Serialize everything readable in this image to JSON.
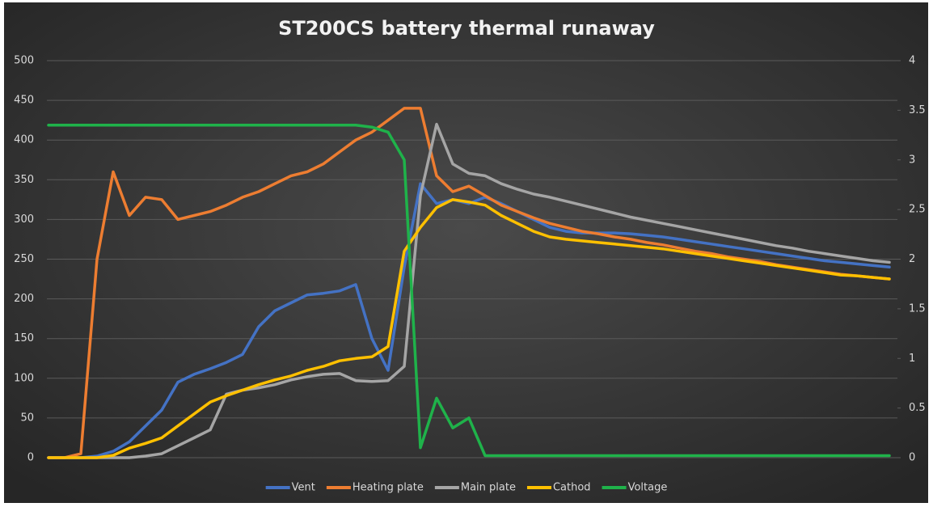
{
  "chart_data": {
    "type": "line",
    "title": "ST200CS battery thermal runaway",
    "categories": [
      null,
      null,
      null,
      null,
      null,
      null,
      null,
      null,
      null,
      null,
      null,
      null,
      null,
      null,
      null,
      null,
      null,
      null,
      null,
      null,
      null,
      null,
      null,
      null,
      null,
      null,
      null,
      null,
      null,
      null,
      null,
      null,
      null,
      null,
      null,
      null,
      null,
      null,
      null,
      null,
      null,
      null,
      null,
      null,
      null,
      null,
      null,
      null,
      null,
      null,
      null,
      null,
      null
    ],
    "series": [
      {
        "name": "Vent",
        "color": "#4472c4",
        "values": [
          0,
          0,
          0,
          2,
          8,
          20,
          40,
          60,
          95,
          105,
          112,
          120,
          130,
          165,
          185,
          195,
          205,
          207,
          210,
          218,
          150,
          110,
          240,
          345,
          320,
          325,
          320,
          328,
          320,
          310,
          300,
          290,
          285,
          283,
          283,
          283,
          282,
          280,
          278,
          275,
          272,
          269,
          266,
          263,
          260,
          257,
          254,
          251,
          248,
          246,
          244,
          242,
          240
        ]
      },
      {
        "name": "Heating plate",
        "color": "#ed7d31",
        "values": [
          0,
          0,
          5,
          250,
          360,
          305,
          328,
          325,
          300,
          305,
          310,
          318,
          328,
          335,
          345,
          355,
          360,
          370,
          385,
          400,
          410,
          425,
          440,
          440,
          355,
          335,
          342,
          330,
          318,
          310,
          302,
          295,
          290,
          285,
          282,
          278,
          275,
          271,
          268,
          264,
          260,
          257,
          253,
          250,
          247,
          243,
          240,
          237,
          234,
          231,
          229,
          227,
          225
        ]
      },
      {
        "name": "Main plate",
        "color": "#a5a5a5",
        "values": [
          0,
          0,
          0,
          0,
          0,
          0,
          2,
          5,
          15,
          25,
          35,
          80,
          85,
          88,
          92,
          98,
          102,
          105,
          106,
          97,
          96,
          97,
          115,
          330,
          420,
          370,
          358,
          355,
          345,
          338,
          332,
          328,
          323,
          318,
          313,
          308,
          303,
          299,
          295,
          291,
          287,
          283,
          279,
          275,
          271,
          267,
          264,
          260,
          257,
          254,
          251,
          248,
          246
        ]
      },
      {
        "name": "Cathod",
        "color": "#ffc000",
        "values": [
          0,
          0,
          0,
          0,
          3,
          12,
          18,
          25,
          40,
          55,
          70,
          78,
          85,
          92,
          98,
          103,
          110,
          115,
          122,
          125,
          127,
          140,
          260,
          290,
          315,
          325,
          322,
          318,
          305,
          295,
          285,
          278,
          275,
          273,
          271,
          269,
          267,
          265,
          263,
          260,
          257,
          254,
          251,
          248,
          245,
          242,
          239,
          236,
          233,
          230,
          229,
          227,
          225
        ]
      },
      {
        "name": "Voltage",
        "color": "#1fb24a",
        "axis": "y2",
        "values": [
          3.35,
          3.35,
          3.35,
          3.35,
          3.35,
          3.35,
          3.35,
          3.35,
          3.35,
          3.35,
          3.35,
          3.35,
          3.35,
          3.35,
          3.35,
          3.35,
          3.35,
          3.35,
          3.35,
          3.35,
          3.33,
          3.28,
          3.0,
          0.1,
          0.6,
          0.3,
          0.4,
          0.02,
          0.02,
          0.02,
          0.02,
          0.02,
          0.02,
          0.02,
          0.02,
          0.02,
          0.02,
          0.02,
          0.02,
          0.02,
          0.02,
          0.02,
          0.02,
          0.02,
          0.02,
          0.02,
          0.02,
          0.02,
          0.02,
          0.02,
          0.02,
          0.02,
          0.02
        ]
      }
    ],
    "ylim": [
      0,
      500
    ],
    "yticks": [
      0,
      50,
      100,
      150,
      200,
      250,
      300,
      350,
      400,
      450,
      500
    ],
    "y2lim": [
      0,
      4
    ],
    "y2ticks": [
      0,
      0.5,
      1,
      1.5,
      2,
      2.5,
      3,
      3.5,
      4
    ],
    "grid": true,
    "legend": "bottom"
  }
}
